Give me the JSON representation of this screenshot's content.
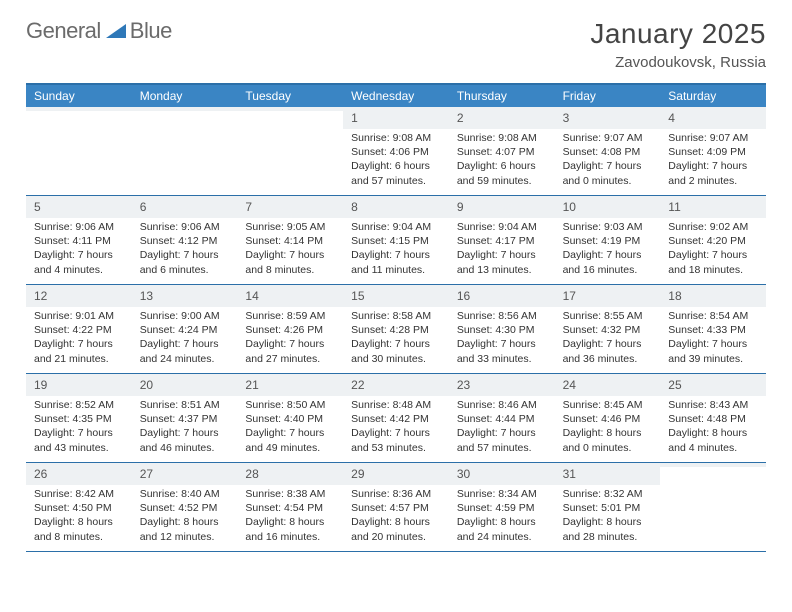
{
  "logo": {
    "word1": "General",
    "word2": "Blue"
  },
  "header": {
    "month_title": "January 2025",
    "location": "Zavodoukovsk, Russia"
  },
  "colors": {
    "header_bar": "#3a85c4",
    "top_rule": "#2b6fa8",
    "week_rule": "#2b6fa8",
    "daynum_bg": "#eef1f3",
    "logo_text": "#6b6b6b",
    "logo_triangle": "#2e78b8"
  },
  "day_names": [
    "Sunday",
    "Monday",
    "Tuesday",
    "Wednesday",
    "Thursday",
    "Friday",
    "Saturday"
  ],
  "weeks": [
    [
      {
        "day": "",
        "sr": "",
        "ss": "",
        "dl": ""
      },
      {
        "day": "",
        "sr": "",
        "ss": "",
        "dl": ""
      },
      {
        "day": "",
        "sr": "",
        "ss": "",
        "dl": ""
      },
      {
        "day": "1",
        "sr": "Sunrise: 9:08 AM",
        "ss": "Sunset: 4:06 PM",
        "dl": "Daylight: 6 hours and 57 minutes."
      },
      {
        "day": "2",
        "sr": "Sunrise: 9:08 AM",
        "ss": "Sunset: 4:07 PM",
        "dl": "Daylight: 6 hours and 59 minutes."
      },
      {
        "day": "3",
        "sr": "Sunrise: 9:07 AM",
        "ss": "Sunset: 4:08 PM",
        "dl": "Daylight: 7 hours and 0 minutes."
      },
      {
        "day": "4",
        "sr": "Sunrise: 9:07 AM",
        "ss": "Sunset: 4:09 PM",
        "dl": "Daylight: 7 hours and 2 minutes."
      }
    ],
    [
      {
        "day": "5",
        "sr": "Sunrise: 9:06 AM",
        "ss": "Sunset: 4:11 PM",
        "dl": "Daylight: 7 hours and 4 minutes."
      },
      {
        "day": "6",
        "sr": "Sunrise: 9:06 AM",
        "ss": "Sunset: 4:12 PM",
        "dl": "Daylight: 7 hours and 6 minutes."
      },
      {
        "day": "7",
        "sr": "Sunrise: 9:05 AM",
        "ss": "Sunset: 4:14 PM",
        "dl": "Daylight: 7 hours and 8 minutes."
      },
      {
        "day": "8",
        "sr": "Sunrise: 9:04 AM",
        "ss": "Sunset: 4:15 PM",
        "dl": "Daylight: 7 hours and 11 minutes."
      },
      {
        "day": "9",
        "sr": "Sunrise: 9:04 AM",
        "ss": "Sunset: 4:17 PM",
        "dl": "Daylight: 7 hours and 13 minutes."
      },
      {
        "day": "10",
        "sr": "Sunrise: 9:03 AM",
        "ss": "Sunset: 4:19 PM",
        "dl": "Daylight: 7 hours and 16 minutes."
      },
      {
        "day": "11",
        "sr": "Sunrise: 9:02 AM",
        "ss": "Sunset: 4:20 PM",
        "dl": "Daylight: 7 hours and 18 minutes."
      }
    ],
    [
      {
        "day": "12",
        "sr": "Sunrise: 9:01 AM",
        "ss": "Sunset: 4:22 PM",
        "dl": "Daylight: 7 hours and 21 minutes."
      },
      {
        "day": "13",
        "sr": "Sunrise: 9:00 AM",
        "ss": "Sunset: 4:24 PM",
        "dl": "Daylight: 7 hours and 24 minutes."
      },
      {
        "day": "14",
        "sr": "Sunrise: 8:59 AM",
        "ss": "Sunset: 4:26 PM",
        "dl": "Daylight: 7 hours and 27 minutes."
      },
      {
        "day": "15",
        "sr": "Sunrise: 8:58 AM",
        "ss": "Sunset: 4:28 PM",
        "dl": "Daylight: 7 hours and 30 minutes."
      },
      {
        "day": "16",
        "sr": "Sunrise: 8:56 AM",
        "ss": "Sunset: 4:30 PM",
        "dl": "Daylight: 7 hours and 33 minutes."
      },
      {
        "day": "17",
        "sr": "Sunrise: 8:55 AM",
        "ss": "Sunset: 4:32 PM",
        "dl": "Daylight: 7 hours and 36 minutes."
      },
      {
        "day": "18",
        "sr": "Sunrise: 8:54 AM",
        "ss": "Sunset: 4:33 PM",
        "dl": "Daylight: 7 hours and 39 minutes."
      }
    ],
    [
      {
        "day": "19",
        "sr": "Sunrise: 8:52 AM",
        "ss": "Sunset: 4:35 PM",
        "dl": "Daylight: 7 hours and 43 minutes."
      },
      {
        "day": "20",
        "sr": "Sunrise: 8:51 AM",
        "ss": "Sunset: 4:37 PM",
        "dl": "Daylight: 7 hours and 46 minutes."
      },
      {
        "day": "21",
        "sr": "Sunrise: 8:50 AM",
        "ss": "Sunset: 4:40 PM",
        "dl": "Daylight: 7 hours and 49 minutes."
      },
      {
        "day": "22",
        "sr": "Sunrise: 8:48 AM",
        "ss": "Sunset: 4:42 PM",
        "dl": "Daylight: 7 hours and 53 minutes."
      },
      {
        "day": "23",
        "sr": "Sunrise: 8:46 AM",
        "ss": "Sunset: 4:44 PM",
        "dl": "Daylight: 7 hours and 57 minutes."
      },
      {
        "day": "24",
        "sr": "Sunrise: 8:45 AM",
        "ss": "Sunset: 4:46 PM",
        "dl": "Daylight: 8 hours and 0 minutes."
      },
      {
        "day": "25",
        "sr": "Sunrise: 8:43 AM",
        "ss": "Sunset: 4:48 PM",
        "dl": "Daylight: 8 hours and 4 minutes."
      }
    ],
    [
      {
        "day": "26",
        "sr": "Sunrise: 8:42 AM",
        "ss": "Sunset: 4:50 PM",
        "dl": "Daylight: 8 hours and 8 minutes."
      },
      {
        "day": "27",
        "sr": "Sunrise: 8:40 AM",
        "ss": "Sunset: 4:52 PM",
        "dl": "Daylight: 8 hours and 12 minutes."
      },
      {
        "day": "28",
        "sr": "Sunrise: 8:38 AM",
        "ss": "Sunset: 4:54 PM",
        "dl": "Daylight: 8 hours and 16 minutes."
      },
      {
        "day": "29",
        "sr": "Sunrise: 8:36 AM",
        "ss": "Sunset: 4:57 PM",
        "dl": "Daylight: 8 hours and 20 minutes."
      },
      {
        "day": "30",
        "sr": "Sunrise: 8:34 AM",
        "ss": "Sunset: 4:59 PM",
        "dl": "Daylight: 8 hours and 24 minutes."
      },
      {
        "day": "31",
        "sr": "Sunrise: 8:32 AM",
        "ss": "Sunset: 5:01 PM",
        "dl": "Daylight: 8 hours and 28 minutes."
      },
      {
        "day": "",
        "sr": "",
        "ss": "",
        "dl": ""
      }
    ]
  ]
}
